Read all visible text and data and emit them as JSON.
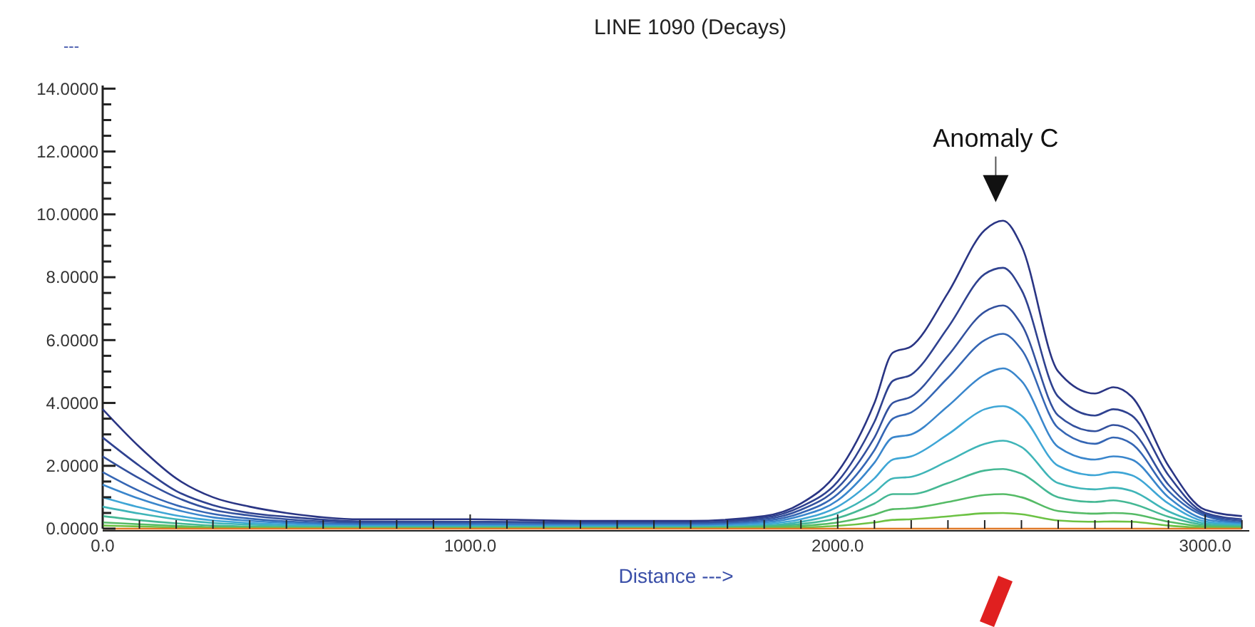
{
  "chart_data": {
    "type": "line",
    "title": "LINE 1090 (Decays)",
    "xlabel": "Distance --->",
    "ylabel": "---",
    "x": [
      0,
      100,
      200,
      300,
      400,
      500,
      700,
      1000,
      1300,
      1600,
      1800,
      1900,
      2000,
      2100,
      2150,
      2200,
      2300,
      2400,
      2450,
      2500,
      2600,
      2700,
      2750,
      2800,
      2900,
      3000,
      3100
    ],
    "series": [
      {
        "color": "#2a3584",
        "values": [
          3.8,
          2.6,
          1.6,
          1.0,
          0.7,
          0.5,
          0.3,
          0.3,
          0.25,
          0.25,
          0.4,
          0.8,
          1.8,
          4.0,
          5.6,
          5.8,
          7.5,
          9.5,
          9.8,
          9.0,
          5.0,
          4.3,
          4.5,
          4.2,
          2.0,
          0.6,
          0.4
        ]
      },
      {
        "color": "#2f4290",
        "values": [
          2.9,
          2.0,
          1.2,
          0.75,
          0.5,
          0.38,
          0.23,
          0.22,
          0.2,
          0.2,
          0.35,
          0.7,
          1.5,
          3.4,
          4.7,
          4.9,
          6.4,
          8.1,
          8.3,
          7.6,
          4.2,
          3.6,
          3.8,
          3.6,
          1.7,
          0.5,
          0.3
        ]
      },
      {
        "color": "#33519e",
        "values": [
          2.3,
          1.6,
          1.0,
          0.6,
          0.42,
          0.3,
          0.2,
          0.2,
          0.18,
          0.18,
          0.3,
          0.6,
          1.3,
          2.9,
          4.0,
          4.2,
          5.5,
          6.9,
          7.1,
          6.5,
          3.6,
          3.1,
          3.3,
          3.1,
          1.4,
          0.45,
          0.25
        ]
      },
      {
        "color": "#3566b4",
        "values": [
          1.8,
          1.2,
          0.75,
          0.47,
          0.32,
          0.23,
          0.15,
          0.15,
          0.14,
          0.14,
          0.25,
          0.5,
          1.1,
          2.5,
          3.5,
          3.7,
          4.8,
          6.0,
          6.2,
          5.7,
          3.2,
          2.7,
          2.9,
          2.7,
          1.2,
          0.4,
          0.2
        ]
      },
      {
        "color": "#3a86cc",
        "values": [
          1.4,
          0.95,
          0.6,
          0.36,
          0.25,
          0.18,
          0.12,
          0.12,
          0.11,
          0.11,
          0.2,
          0.41,
          0.9,
          2.1,
          2.9,
          3.0,
          3.9,
          4.9,
          5.1,
          4.7,
          2.6,
          2.2,
          2.3,
          2.2,
          1.0,
          0.3,
          0.17
        ]
      },
      {
        "color": "#3fa6d6",
        "values": [
          1.0,
          0.68,
          0.42,
          0.26,
          0.18,
          0.13,
          0.08,
          0.08,
          0.07,
          0.07,
          0.15,
          0.3,
          0.7,
          1.6,
          2.2,
          2.3,
          3.0,
          3.8,
          3.9,
          3.6,
          2.0,
          1.7,
          1.8,
          1.7,
          0.8,
          0.23,
          0.13
        ]
      },
      {
        "color": "#3fb5b8",
        "values": [
          0.7,
          0.48,
          0.3,
          0.18,
          0.13,
          0.09,
          0.06,
          0.06,
          0.05,
          0.05,
          0.1,
          0.22,
          0.5,
          1.15,
          1.6,
          1.65,
          2.15,
          2.7,
          2.8,
          2.6,
          1.45,
          1.25,
          1.3,
          1.2,
          0.55,
          0.17,
          0.1
        ]
      },
      {
        "color": "#45b894",
        "values": [
          0.4,
          0.27,
          0.17,
          0.1,
          0.07,
          0.05,
          0.04,
          0.04,
          0.04,
          0.04,
          0.08,
          0.15,
          0.34,
          0.8,
          1.1,
          1.1,
          1.45,
          1.85,
          1.9,
          1.75,
          1.0,
          0.85,
          0.9,
          0.8,
          0.38,
          0.12,
          0.07
        ]
      },
      {
        "color": "#55bb66",
        "values": [
          0.2,
          0.14,
          0.09,
          0.05,
          0.04,
          0.03,
          0.02,
          0.02,
          0.02,
          0.02,
          0.05,
          0.09,
          0.2,
          0.45,
          0.62,
          0.65,
          0.85,
          1.07,
          1.1,
          1.0,
          0.56,
          0.48,
          0.5,
          0.47,
          0.22,
          0.07,
          0.04
        ]
      },
      {
        "color": "#6cc244",
        "values": [
          0.1,
          0.07,
          0.04,
          0.03,
          0.02,
          0.02,
          0.01,
          0.01,
          0.01,
          0.01,
          0.02,
          0.04,
          0.09,
          0.2,
          0.28,
          0.3,
          0.39,
          0.49,
          0.5,
          0.46,
          0.26,
          0.22,
          0.23,
          0.22,
          0.1,
          0.03,
          0.02
        ]
      },
      {
        "color": "#e07a2a",
        "values": [
          0,
          0,
          0,
          0,
          0,
          0,
          0,
          0,
          0,
          0,
          0,
          0,
          0,
          0,
          0,
          0,
          0,
          0,
          0,
          0,
          0,
          0,
          0,
          0,
          0,
          0,
          0
        ]
      }
    ],
    "xlim": [
      0,
      3120
    ],
    "ylim": [
      0,
      14.1
    ],
    "xticks": [
      {
        "value": 0,
        "label": "0.0"
      },
      {
        "value": 100,
        "label": null
      },
      {
        "value": 200,
        "label": null
      },
      {
        "value": 300,
        "label": null
      },
      {
        "value": 400,
        "label": null
      },
      {
        "value": 500,
        "label": null
      },
      {
        "value": 600,
        "label": null
      },
      {
        "value": 700,
        "label": null
      },
      {
        "value": 800,
        "label": null
      },
      {
        "value": 900,
        "label": null
      },
      {
        "value": 1000,
        "label": "1000.0"
      },
      {
        "value": 1100,
        "label": null
      },
      {
        "value": 1200,
        "label": null
      },
      {
        "value": 1300,
        "label": null
      },
      {
        "value": 1400,
        "label": null
      },
      {
        "value": 1500,
        "label": null
      },
      {
        "value": 1600,
        "label": null
      },
      {
        "value": 1700,
        "label": null
      },
      {
        "value": 1800,
        "label": null
      },
      {
        "value": 1900,
        "label": null
      },
      {
        "value": 2000,
        "label": "2000.0"
      },
      {
        "value": 2100,
        "label": null
      },
      {
        "value": 2200,
        "label": null
      },
      {
        "value": 2300,
        "label": null
      },
      {
        "value": 2400,
        "label": null
      },
      {
        "value": 2500,
        "label": null
      },
      {
        "value": 2600,
        "label": null
      },
      {
        "value": 2700,
        "label": null
      },
      {
        "value": 2800,
        "label": null
      },
      {
        "value": 2900,
        "label": null
      },
      {
        "value": 3000,
        "label": "3000.0"
      },
      {
        "value": 3100,
        "label": null
      }
    ],
    "yticks": [
      {
        "value": 0,
        "label": "0.0000"
      },
      {
        "value": 0.5,
        "label": null
      },
      {
        "value": 1,
        "label": null
      },
      {
        "value": 1.5,
        "label": null
      },
      {
        "value": 2,
        "label": "2.0000"
      },
      {
        "value": 2.5,
        "label": null
      },
      {
        "value": 3,
        "label": null
      },
      {
        "value": 3.5,
        "label": null
      },
      {
        "value": 4,
        "label": "4.0000"
      },
      {
        "value": 4.5,
        "label": null
      },
      {
        "value": 5,
        "label": null
      },
      {
        "value": 5.5,
        "label": null
      },
      {
        "value": 6,
        "label": "6.0000"
      },
      {
        "value": 6.5,
        "label": null
      },
      {
        "value": 7,
        "label": null
      },
      {
        "value": 7.5,
        "label": null
      },
      {
        "value": 8,
        "label": "8.0000"
      },
      {
        "value": 8.5,
        "label": null
      },
      {
        "value": 9,
        "label": null
      },
      {
        "value": 9.5,
        "label": null
      },
      {
        "value": 10,
        "label": "10.0000"
      },
      {
        "value": 10.5,
        "label": null
      },
      {
        "value": 11,
        "label": null
      },
      {
        "value": 11.5,
        "label": null
      },
      {
        "value": 12,
        "label": "12.0000"
      },
      {
        "value": 12.5,
        "label": null
      },
      {
        "value": 13,
        "label": null
      },
      {
        "value": 13.5,
        "label": null
      },
      {
        "value": 14,
        "label": "14.0000"
      }
    ],
    "grid": false,
    "marker": "none",
    "line_style": "solid",
    "annotations": [
      {
        "text": "Anomaly C",
        "x": 2430,
        "y": 9.8
      }
    ]
  }
}
